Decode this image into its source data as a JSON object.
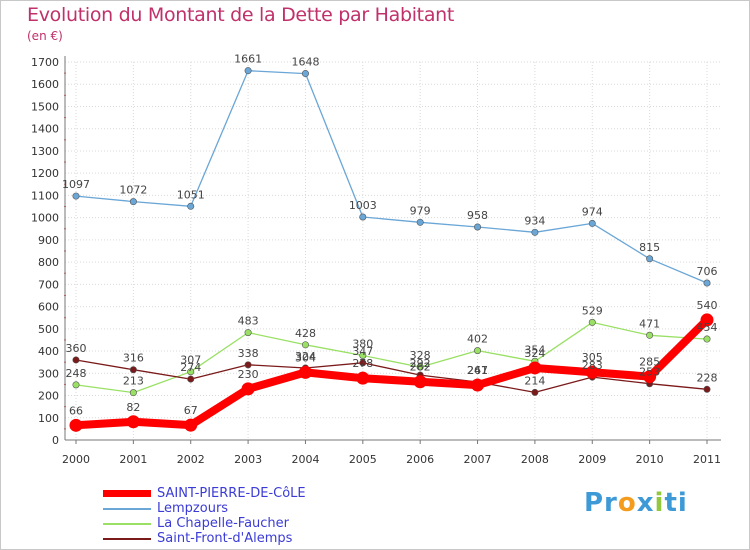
{
  "chart_data": {
    "type": "line",
    "title": "Evolution du Montant de la Dette par Habitant",
    "subtitle": "(en €)",
    "x": [
      "2000",
      "2001",
      "2002",
      "2003",
      "2004",
      "2005",
      "2006",
      "2007",
      "2008",
      "2009",
      "2010",
      "2011"
    ],
    "yticks": [
      "0",
      "100",
      "200",
      "300",
      "400",
      "500",
      "600",
      "700",
      "800",
      "900",
      "1000",
      "1100",
      "1200",
      "1300",
      "1400",
      "1500",
      "1600",
      "1700"
    ],
    "ylim": [
      0,
      1700
    ],
    "grid": true,
    "legend_position": "bottom-left",
    "series": [
      {
        "name": "SAINT-PIERRE-DE-CôLE",
        "color": "#ff0000",
        "values": [
          66,
          82,
          67,
          230,
          304,
          278,
          262,
          247,
          324,
          305,
          285,
          540
        ]
      },
      {
        "name": "Lempzours",
        "color": "#6aa6d6",
        "values": [
          1097,
          1072,
          1051,
          1661,
          1648,
          1003,
          979,
          958,
          934,
          974,
          815,
          706
        ]
      },
      {
        "name": "La Chapelle-Faucher",
        "color": "#99e065",
        "values": [
          248,
          213,
          307,
          483,
          428,
          380,
          328,
          402,
          354,
          529,
          471,
          454
        ]
      },
      {
        "name": "Saint-Front-d'Alemps",
        "color": "#7b1a1a",
        "values": [
          360,
          316,
          274,
          338,
          324,
          347,
          292,
          261,
          214,
          283,
          253,
          228
        ]
      }
    ]
  },
  "logo": {
    "parts": [
      "Pr",
      "o",
      "x",
      "i",
      "ti"
    ],
    "colors": [
      "#3e9ad6",
      "#f39c1d",
      "#3e9ad6",
      "#93c83e",
      "#3e9ad6"
    ]
  }
}
